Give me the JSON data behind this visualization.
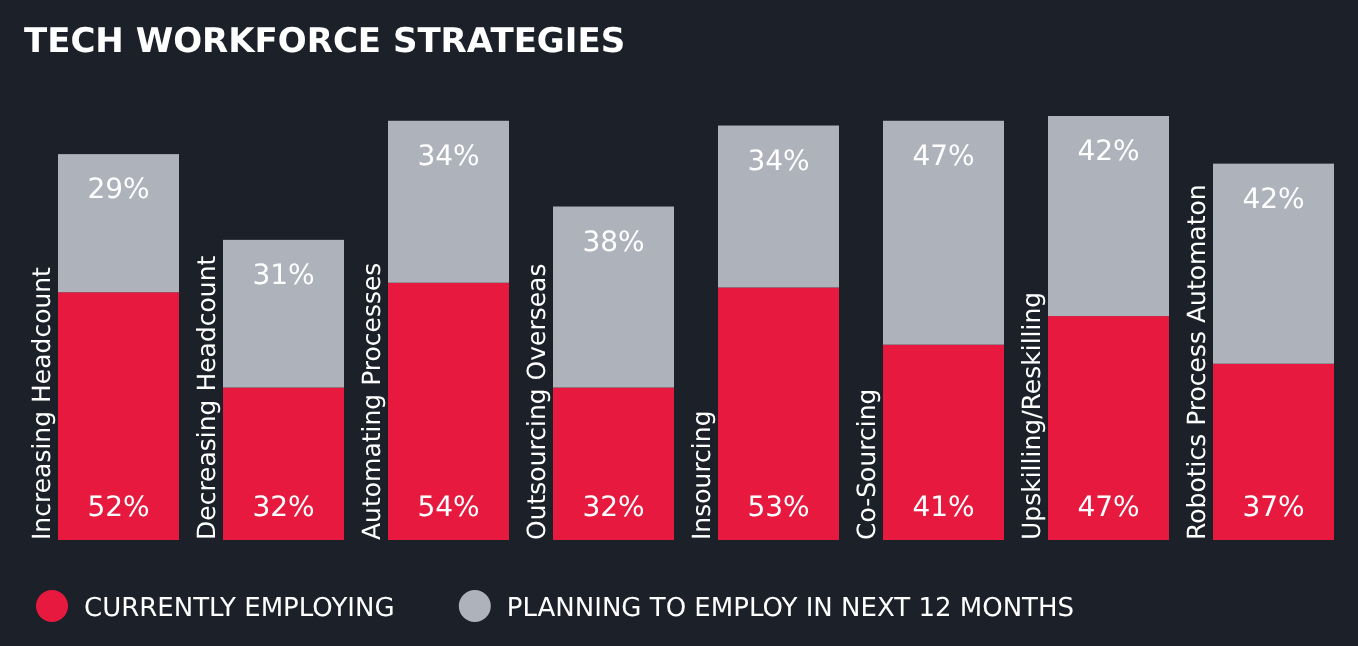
{
  "chart_data": {
    "type": "bar",
    "title": "TECH WORKFORCE STRATEGIES",
    "stacked": true,
    "legend": "bottom",
    "categories": [
      "Increasing Headcount",
      "Decreasing Headcount",
      "Automating Processes",
      "Outsourcing Overseas",
      "Insourcing",
      "Co-Sourcing",
      "Upskilling/Reskilling",
      "Robotics Process Automaton"
    ],
    "series": [
      {
        "name": "CURRENTLY EMPLOYING",
        "color": "#e8193f",
        "values": [
          52,
          32,
          54,
          32,
          53,
          41,
          47,
          37
        ],
        "value_labels": [
          "52%",
          "32%",
          "54%",
          "32%",
          "53%",
          "41%",
          "47%",
          "37%"
        ]
      },
      {
        "name": "PLANNING TO EMPLOY IN NEXT 12 MONTHS",
        "color": "#aeb2bb",
        "values": [
          29,
          31,
          34,
          38,
          34,
          47,
          42,
          42
        ],
        "value_labels": [
          "29%",
          "31%",
          "34%",
          "38%",
          "34%",
          "47%",
          "42%",
          "42%"
        ]
      }
    ]
  }
}
